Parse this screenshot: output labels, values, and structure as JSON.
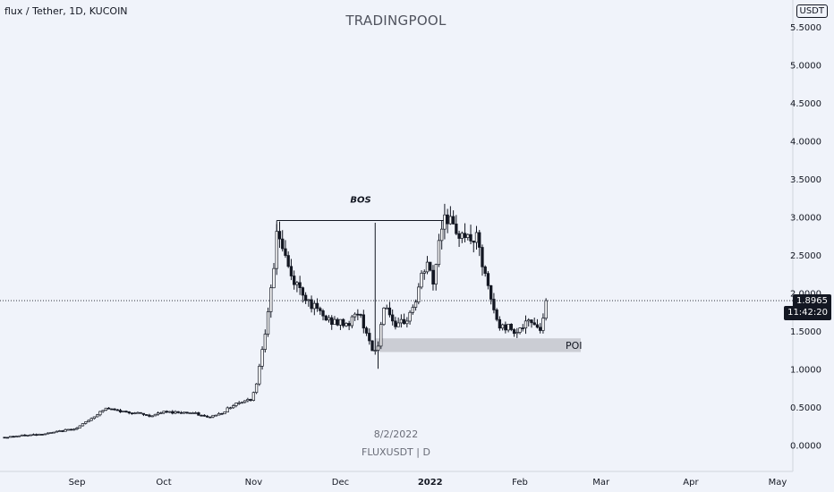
{
  "header": {
    "symbol_line": "flux / Tether, 1D, KUCOIN",
    "watermark": "TRADINGPOOL",
    "currency": "USDT"
  },
  "footer": {
    "date": "8/2/2022",
    "ticker": "FLUXUSDT | D"
  },
  "price_label": {
    "price": "1.8965",
    "countdown": "11:42:20"
  },
  "colors": {
    "background": "#f0f3fa",
    "candle": "#131722",
    "poi_zone": "#c4c6cc",
    "dotted_line": "#131722"
  },
  "chart_data": {
    "type": "candlestick",
    "interval": "1D",
    "y_axis": {
      "ticks": [
        "0.0000",
        "0.5000",
        "1.0000",
        "1.5000",
        "2.0000",
        "2.5000",
        "3.0000",
        "3.5000",
        "4.0000",
        "4.5000",
        "5.0000",
        "5.5000"
      ],
      "ylim": [
        -0.35,
        5.85
      ]
    },
    "x_axis": {
      "tick_labels": [
        "Sep",
        "Oct",
        "Nov",
        "Dec",
        "2022",
        "Feb",
        "Mar",
        "Apr",
        "May"
      ],
      "tick_days": [
        0,
        30,
        61,
        91,
        122,
        153,
        181,
        212,
        242
      ]
    },
    "last_price": 1.8965,
    "bos": {
      "label": "BOS",
      "day_start": 69,
      "day_end": 127,
      "price": 2.95
    },
    "poi": {
      "label": "POI",
      "day_start": 103,
      "day_end": 174,
      "price_low": 1.22,
      "price_high": 1.4
    },
    "events": [
      {
        "day": 103,
        "high": 2.92
      },
      {
        "day": 104,
        "low": 1.0
      }
    ],
    "anchors": [
      [
        -25,
        0.1
      ],
      [
        -10,
        0.15
      ],
      [
        0,
        0.22
      ],
      [
        5,
        0.35
      ],
      [
        10,
        0.48
      ],
      [
        15,
        0.44
      ],
      [
        20,
        0.42
      ],
      [
        25,
        0.38
      ],
      [
        30,
        0.43
      ],
      [
        35,
        0.43
      ],
      [
        40,
        0.42
      ],
      [
        45,
        0.36
      ],
      [
        50,
        0.42
      ],
      [
        55,
        0.55
      ],
      [
        60,
        0.6
      ],
      [
        62,
        0.8
      ],
      [
        64,
        1.3
      ],
      [
        66,
        1.7
      ],
      [
        68,
        2.3
      ],
      [
        69,
        2.85
      ],
      [
        71,
        2.6
      ],
      [
        74,
        2.2
      ],
      [
        78,
        2.0
      ],
      [
        82,
        1.8
      ],
      [
        86,
        1.65
      ],
      [
        90,
        1.6
      ],
      [
        94,
        1.6
      ],
      [
        97,
        1.75
      ],
      [
        100,
        1.5
      ],
      [
        102,
        1.2
      ],
      [
        104,
        1.3
      ],
      [
        106,
        1.85
      ],
      [
        108,
        1.75
      ],
      [
        110,
        1.5
      ],
      [
        112,
        1.6
      ],
      [
        114,
        1.65
      ],
      [
        117,
        1.9
      ],
      [
        119,
        2.2
      ],
      [
        121,
        2.4
      ],
      [
        123,
        2.1
      ],
      [
        125,
        2.7
      ],
      [
        127,
        3.05
      ],
      [
        129,
        2.95
      ],
      [
        131,
        2.7
      ],
      [
        133,
        2.85
      ],
      [
        135,
        2.7
      ],
      [
        138,
        2.7
      ],
      [
        141,
        2.2
      ],
      [
        144,
        1.75
      ],
      [
        146,
        1.55
      ],
      [
        149,
        1.55
      ],
      [
        152,
        1.5
      ],
      [
        156,
        1.6
      ],
      [
        158,
        1.62
      ],
      [
        160,
        1.5
      ],
      [
        161,
        1.72
      ],
      [
        162,
        1.9
      ]
    ]
  }
}
